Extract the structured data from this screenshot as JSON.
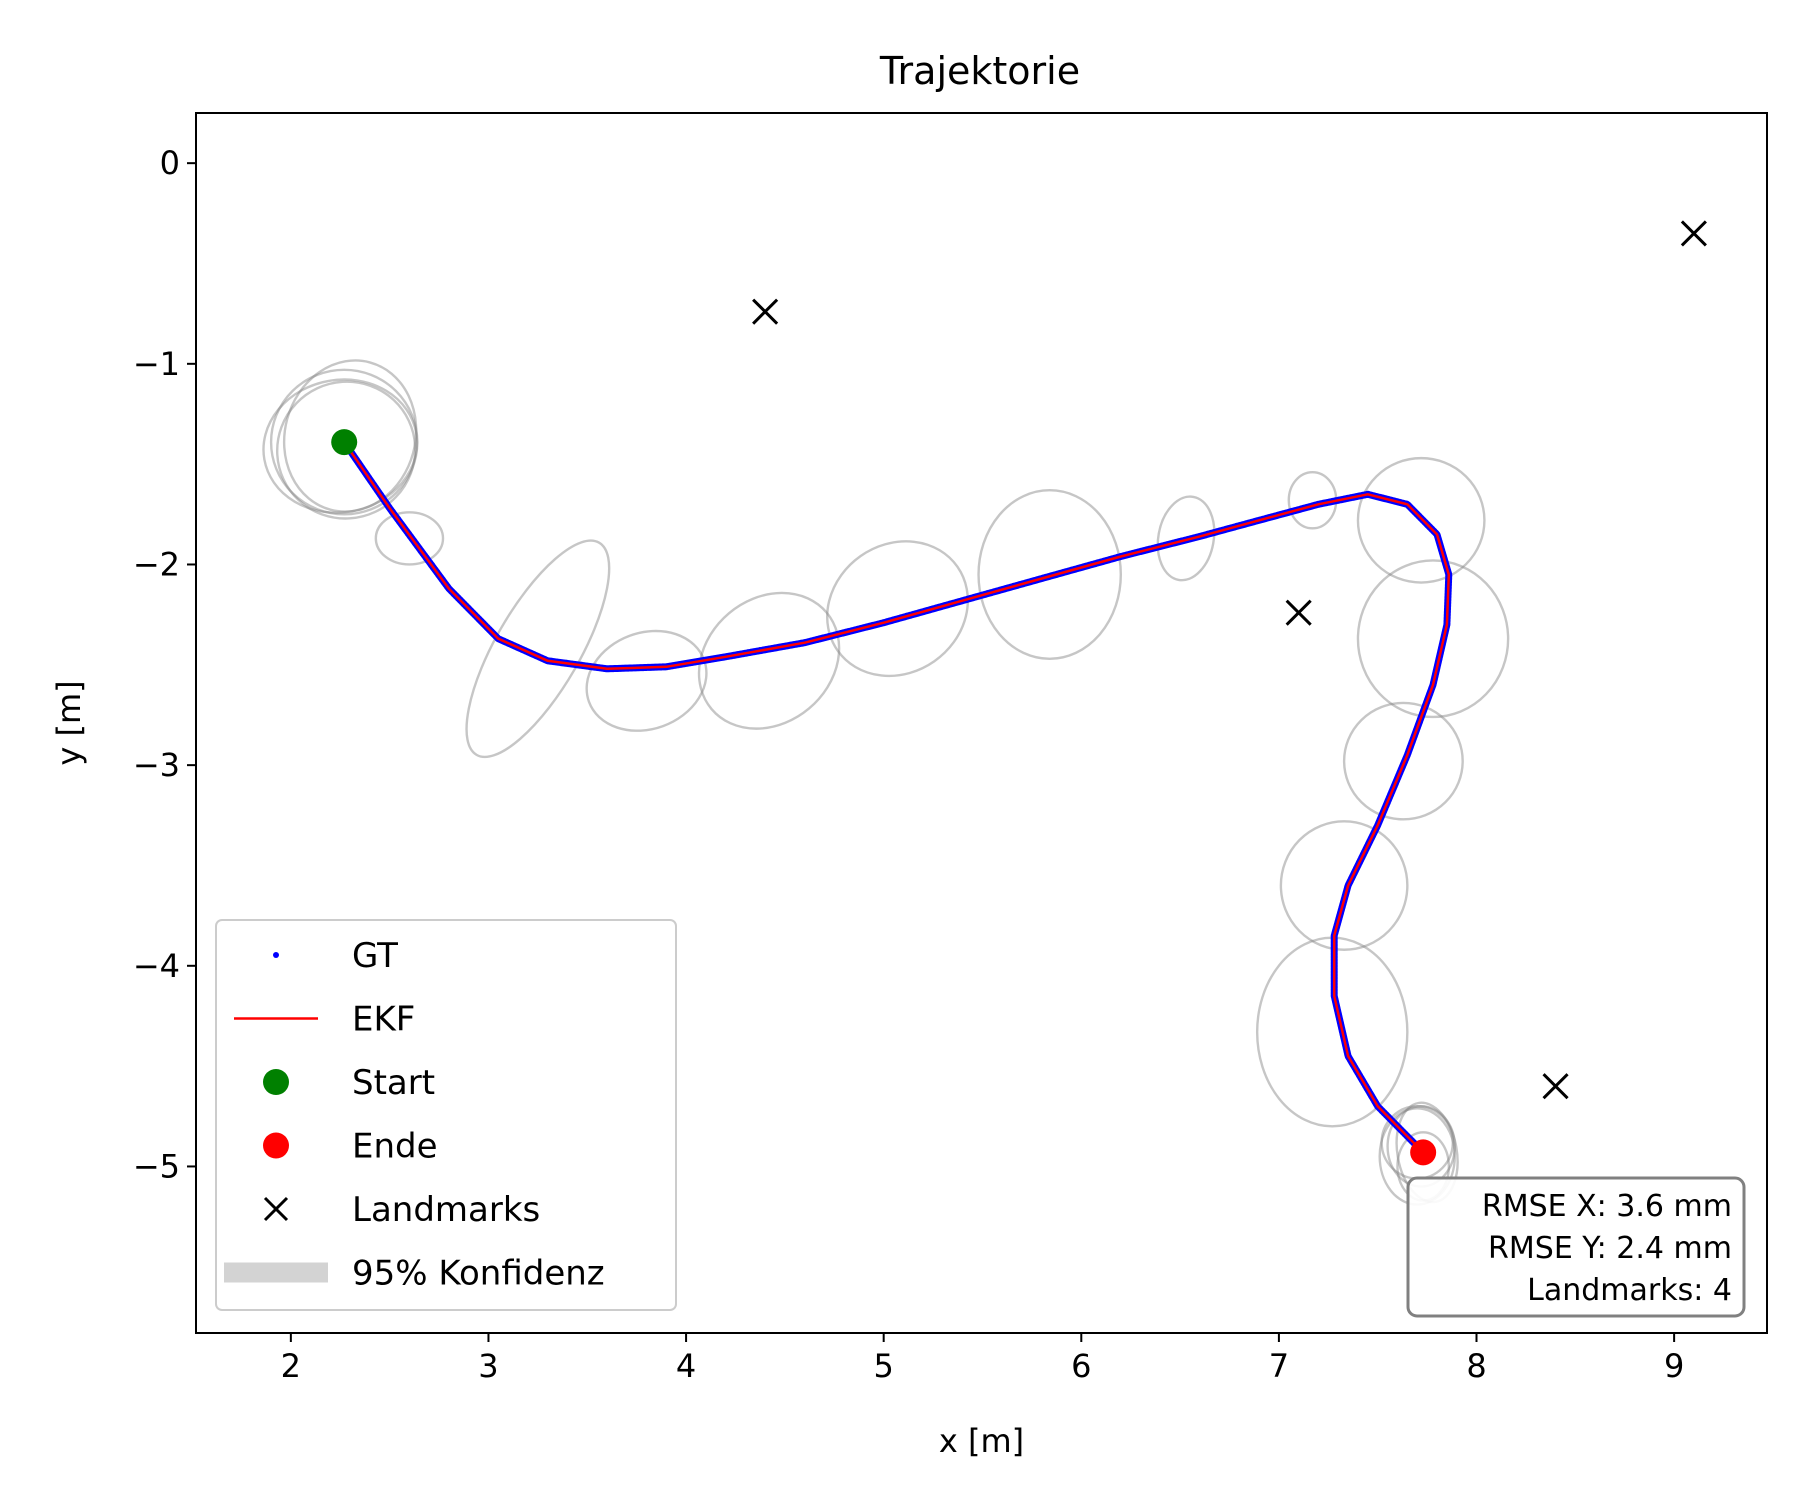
{
  "chart_data": {
    "type": "scatter",
    "title": "Trajektorie",
    "xlabel": "x [m]",
    "ylabel": "y [m]",
    "xlim": [
      1.52,
      9.47
    ],
    "ylim": [
      -5.83,
      0.25
    ],
    "xticks": [
      2,
      3,
      4,
      5,
      6,
      7,
      8,
      9
    ],
    "yticks": [
      0,
      -1,
      -2,
      -3,
      -4,
      -5
    ],
    "ytick_labels": [
      "0",
      "−1",
      "−2",
      "−3",
      "−4",
      "−5"
    ],
    "grid": false,
    "legend_position": "lower left",
    "series": [
      {
        "name": "GT",
        "kind": "markers",
        "color": "#0000ff",
        "points": [
          [
            2.27,
            -1.39
          ],
          [
            2.5,
            -1.72
          ],
          [
            2.8,
            -2.12
          ],
          [
            3.05,
            -2.37
          ],
          [
            3.3,
            -2.48
          ],
          [
            3.6,
            -2.52
          ],
          [
            3.9,
            -2.51
          ],
          [
            4.2,
            -2.46
          ],
          [
            4.6,
            -2.39
          ],
          [
            5.0,
            -2.29
          ],
          [
            5.4,
            -2.18
          ],
          [
            5.8,
            -2.07
          ],
          [
            6.2,
            -1.96
          ],
          [
            6.6,
            -1.86
          ],
          [
            6.9,
            -1.78
          ],
          [
            7.2,
            -1.7
          ],
          [
            7.45,
            -1.65
          ],
          [
            7.65,
            -1.7
          ],
          [
            7.8,
            -1.85
          ],
          [
            7.86,
            -2.05
          ],
          [
            7.85,
            -2.3
          ],
          [
            7.78,
            -2.6
          ],
          [
            7.65,
            -2.95
          ],
          [
            7.5,
            -3.3
          ],
          [
            7.35,
            -3.6
          ],
          [
            7.28,
            -3.85
          ],
          [
            7.28,
            -4.15
          ],
          [
            7.35,
            -4.45
          ],
          [
            7.5,
            -4.7
          ],
          [
            7.73,
            -4.93
          ]
        ]
      },
      {
        "name": "EKF",
        "kind": "line",
        "color": "#ff0000",
        "points": [
          [
            2.27,
            -1.39
          ],
          [
            2.5,
            -1.72
          ],
          [
            2.8,
            -2.12
          ],
          [
            3.05,
            -2.37
          ],
          [
            3.3,
            -2.48
          ],
          [
            3.6,
            -2.52
          ],
          [
            3.9,
            -2.51
          ],
          [
            4.2,
            -2.46
          ],
          [
            4.6,
            -2.39
          ],
          [
            5.0,
            -2.29
          ],
          [
            5.4,
            -2.18
          ],
          [
            5.8,
            -2.07
          ],
          [
            6.2,
            -1.96
          ],
          [
            6.6,
            -1.86
          ],
          [
            6.9,
            -1.78
          ],
          [
            7.2,
            -1.7
          ],
          [
            7.45,
            -1.65
          ],
          [
            7.65,
            -1.7
          ],
          [
            7.8,
            -1.85
          ],
          [
            7.86,
            -2.05
          ],
          [
            7.85,
            -2.3
          ],
          [
            7.78,
            -2.6
          ],
          [
            7.65,
            -2.95
          ],
          [
            7.5,
            -3.3
          ],
          [
            7.35,
            -3.6
          ],
          [
            7.28,
            -3.85
          ],
          [
            7.28,
            -4.15
          ],
          [
            7.35,
            -4.45
          ],
          [
            7.5,
            -4.7
          ],
          [
            7.73,
            -4.93
          ]
        ]
      },
      {
        "name": "Start",
        "kind": "point",
        "color": "#008000",
        "points": [
          [
            2.27,
            -1.39
          ]
        ]
      },
      {
        "name": "Ende",
        "kind": "point",
        "color": "#ff0000",
        "points": [
          [
            7.73,
            -4.93
          ]
        ]
      },
      {
        "name": "Landmarks",
        "kind": "cross",
        "color": "#000000",
        "points": [
          [
            4.4,
            -0.74
          ],
          [
            9.1,
            -0.35
          ],
          [
            7.1,
            -2.24
          ],
          [
            8.4,
            -4.6
          ]
        ]
      },
      {
        "name": "95% Konfidenz",
        "kind": "ellipses",
        "color": "#808080",
        "ellipses": [
          {
            "cx": 2.27,
            "cy": -1.39,
            "rx": 0.37,
            "ry": 0.36,
            "angle": 0
          },
          {
            "cx": 2.25,
            "cy": -1.41,
            "rx": 0.39,
            "ry": 0.33,
            "angle": 10
          },
          {
            "cx": 2.3,
            "cy": -1.36,
            "rx": 0.33,
            "ry": 0.38,
            "angle": -15
          },
          {
            "cx": 2.28,
            "cy": -1.43,
            "rx": 0.35,
            "ry": 0.34,
            "angle": 25
          },
          {
            "cx": 2.6,
            "cy": -1.87,
            "rx": 0.17,
            "ry": 0.13,
            "angle": 0
          },
          {
            "cx": 3.25,
            "cy": -2.42,
            "rx": 0.62,
            "ry": 0.21,
            "angle": 60
          },
          {
            "cx": 3.8,
            "cy": -2.58,
            "rx": 0.31,
            "ry": 0.24,
            "angle": 20
          },
          {
            "cx": 4.42,
            "cy": -2.48,
            "rx": 0.38,
            "ry": 0.31,
            "angle": 40
          },
          {
            "cx": 5.07,
            "cy": -2.22,
            "rx": 0.37,
            "ry": 0.32,
            "angle": 35
          },
          {
            "cx": 5.84,
            "cy": -2.05,
            "rx": 0.36,
            "ry": 0.42,
            "angle": 0
          },
          {
            "cx": 6.53,
            "cy": -1.87,
            "rx": 0.14,
            "ry": 0.21,
            "angle": -10
          },
          {
            "cx": 7.17,
            "cy": -1.68,
            "rx": 0.12,
            "ry": 0.14,
            "angle": 0
          },
          {
            "cx": 7.72,
            "cy": -1.78,
            "rx": 0.32,
            "ry": 0.31,
            "angle": 0
          },
          {
            "cx": 7.78,
            "cy": -2.37,
            "rx": 0.38,
            "ry": 0.39,
            "angle": 0
          },
          {
            "cx": 7.63,
            "cy": -2.98,
            "rx": 0.3,
            "ry": 0.29,
            "angle": 0
          },
          {
            "cx": 7.33,
            "cy": -3.6,
            "rx": 0.32,
            "ry": 0.32,
            "angle": 0
          },
          {
            "cx": 7.27,
            "cy": -4.33,
            "rx": 0.38,
            "ry": 0.47,
            "angle": 0
          },
          {
            "cx": 7.72,
            "cy": -4.9,
            "rx": 0.17,
            "ry": 0.2,
            "angle": 0
          },
          {
            "cx": 7.7,
            "cy": -4.95,
            "rx": 0.19,
            "ry": 0.24,
            "angle": 0
          },
          {
            "cx": 7.75,
            "cy": -4.93,
            "rx": 0.15,
            "ry": 0.25,
            "angle": 10
          },
          {
            "cx": 7.7,
            "cy": -4.88,
            "rx": 0.18,
            "ry": 0.18,
            "angle": 0
          },
          {
            "cx": 7.73,
            "cy": -5.0,
            "rx": 0.13,
            "ry": 0.17,
            "angle": 0
          }
        ]
      }
    ],
    "legend": [
      "GT",
      "EKF",
      "Start",
      "Ende",
      "Landmarks",
      "95% Konfidenz"
    ],
    "stats_box": [
      "RMSE X: 3.6 mm",
      "RMSE Y: 2.4 mm",
      "Landmarks: 4"
    ]
  }
}
